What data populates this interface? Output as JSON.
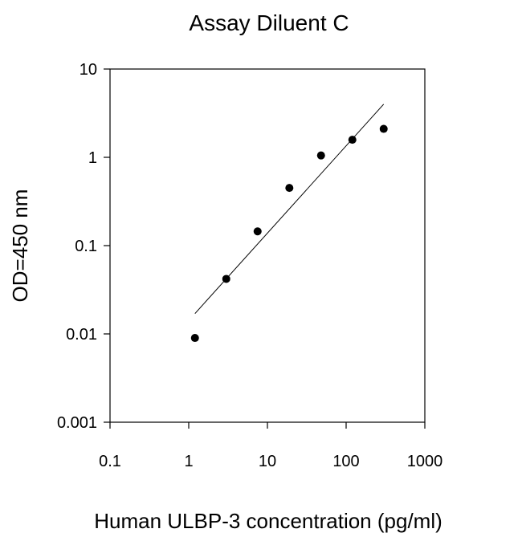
{
  "chart_data": {
    "type": "scatter",
    "title": "Assay Diluent C",
    "xlabel": "Human ULBP-3 concentration (pg/ml)",
    "ylabel": "OD=450 nm",
    "x_scale": "log",
    "y_scale": "log",
    "xlim": [
      0.1,
      1000
    ],
    "ylim": [
      0.001,
      10
    ],
    "x_ticks": [
      "0.1",
      "1",
      "10",
      "100",
      "1000"
    ],
    "y_ticks": [
      "0.001",
      "0.01",
      "0.1",
      "1",
      "10"
    ],
    "grid": false,
    "legend": "none",
    "series": [
      {
        "points": [
          {
            "x": 1.2,
            "y": 0.009
          },
          {
            "x": 3.0,
            "y": 0.042
          },
          {
            "x": 7.5,
            "y": 0.145
          },
          {
            "x": 19,
            "y": 0.45
          },
          {
            "x": 48,
            "y": 1.05
          },
          {
            "x": 120,
            "y": 1.58
          },
          {
            "x": 300,
            "y": 2.1
          }
        ],
        "color": "#000000"
      }
    ],
    "fit_line": {
      "points": [
        {
          "x": 1.2,
          "y": 0.017
        },
        {
          "x": 300,
          "y": 4.0
        }
      ],
      "color": "#000000"
    }
  }
}
